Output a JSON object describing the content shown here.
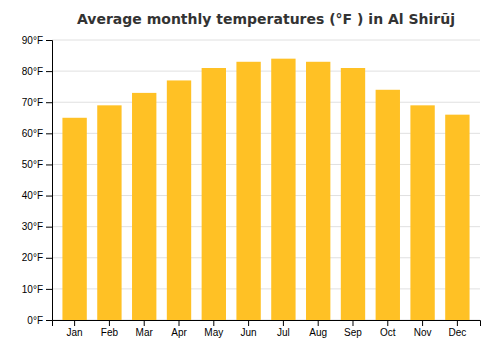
{
  "chart_data": {
    "type": "bar",
    "title": "Average monthly temperatures (°F ) in Al Shirūj",
    "categories": [
      "Jan",
      "Feb",
      "Mar",
      "Apr",
      "May",
      "Jun",
      "Jul",
      "Aug",
      "Sep",
      "Oct",
      "Nov",
      "Dec"
    ],
    "values": [
      65,
      69,
      73,
      77,
      81,
      83,
      84,
      83,
      81,
      74,
      69,
      66
    ],
    "color": "#FFC125",
    "ylim": [
      0,
      90
    ],
    "yticks": [
      {
        "value": 0,
        "label": "0°F"
      },
      {
        "value": 10,
        "label": "10°F"
      },
      {
        "value": 20,
        "label": "20°F"
      },
      {
        "value": 30,
        "label": "30°F"
      },
      {
        "value": 40,
        "label": "40°F"
      },
      {
        "value": 50,
        "label": "50°F"
      },
      {
        "value": 60,
        "label": "60°F"
      },
      {
        "value": 70,
        "label": "70°F"
      },
      {
        "value": 80,
        "label": "80°F"
      },
      {
        "value": 90,
        "label": "90°F"
      }
    ],
    "grid": true
  }
}
